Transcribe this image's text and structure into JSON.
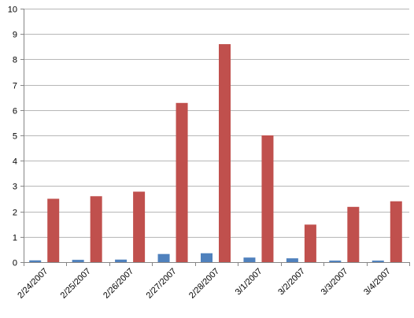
{
  "chart_data": {
    "type": "bar",
    "title": "",
    "xlabel": "",
    "ylabel": "",
    "categories": [
      "2/24/2007",
      "2/25/2007",
      "2/26/2007",
      "2/27/2007",
      "2/28/2007",
      "3/1/2007",
      "3/2/2007",
      "3/3/2007",
      "3/4/2007"
    ],
    "series": [
      {
        "color": "#4f81bd",
        "values": [
          0.07,
          0.09,
          0.1,
          0.32,
          0.35,
          0.18,
          0.15,
          0.06,
          0.06
        ]
      },
      {
        "color": "#c0504d",
        "values": [
          2.5,
          2.6,
          2.78,
          6.28,
          8.6,
          5.0,
          1.48,
          2.18,
          2.4
        ]
      }
    ],
    "ylim": [
      0,
      10
    ],
    "yticks": [
      "0",
      "1",
      "2",
      "3",
      "4",
      "5",
      "6",
      "7",
      "8",
      "9",
      "10"
    ],
    "grid": true,
    "legend": "none"
  }
}
